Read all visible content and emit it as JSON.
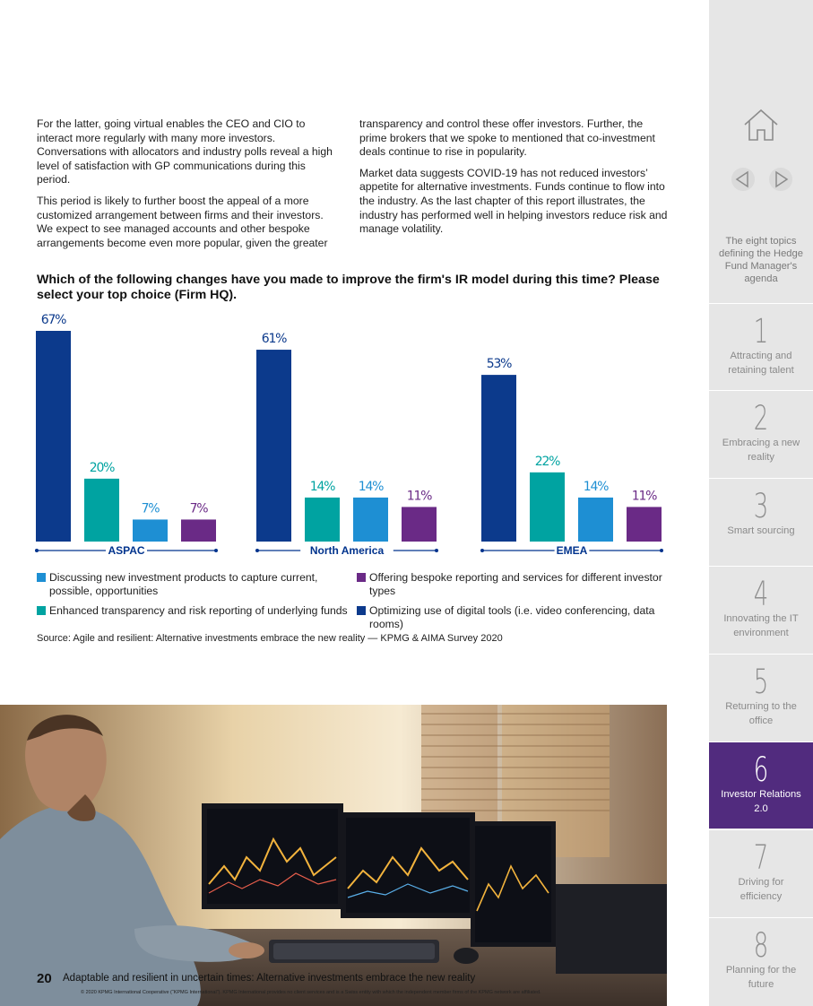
{
  "body": {
    "left_paragraphs": [
      "For the latter, going virtual enables the CEO and CIO to interact more regularly with many more investors. Conversations with allocators and industry polls reveal a high level of satisfaction with GP communications during this period.",
      "This period is likely to further boost the appeal of a more customized arrangement between firms and their investors. We expect to see managed accounts and other bespoke arrangements become even more popular, given the greater"
    ],
    "right_paragraphs": [
      "transparency and control these offer investors. Further, the prime brokers that we spoke to mentioned that co-investment deals continue to rise in popularity.",
      "Market data suggests COVID-19 has not reduced investors’ appetite for alternative investments. Funds continue to flow into the industry. As the last chapter of this report illustrates, the industry has performed well in helping investors reduce risk and manage volatility."
    ]
  },
  "chart_data": {
    "type": "bar",
    "title": "Which of the following changes have you made to improve the firm's IR model during this time? Please select your top choice (Firm HQ).",
    "categories": [
      "ASPAC",
      "North America",
      "EMEA"
    ],
    "value_suffix": "%",
    "series": [
      {
        "name": "Optimizing use of digital tools (i.e. video conferencing, data rooms)",
        "color": "#0c3a8c",
        "values": [
          67,
          61,
          53
        ]
      },
      {
        "name": "Enhanced transparency and risk reporting of underlying funds",
        "color": "#00a3a1",
        "values": [
          20,
          14,
          22
        ]
      },
      {
        "name": "Discussing new investment products to capture current, possible, opportunities",
        "color": "#1e8fd3",
        "values": [
          7,
          14,
          14
        ]
      },
      {
        "name": "Offering bespoke reporting and services for different investor types",
        "color": "#6a2a86",
        "values": [
          7,
          11,
          11
        ]
      }
    ],
    "ylim": [
      0,
      67
    ],
    "legend": [
      {
        "label": "Discussing new investment products to capture current, possible, opportunities",
        "color": "#1e8fd3"
      },
      {
        "label": "Offering bespoke reporting and services for different investor types",
        "color": "#6a2a86"
      },
      {
        "label": "Enhanced transparency and risk reporting of underlying funds",
        "color": "#00a3a1"
      },
      {
        "label": "Optimizing use of digital tools (i.e. video conferencing, data rooms)",
        "color": "#0c3a8c"
      }
    ],
    "legend_placement": "bottom",
    "source": "Source: Agile and resilient: Alternative investments embrace the new reality — KPMG & AIMA Survey 2020"
  },
  "footer": {
    "page_number": "20",
    "title": "Adaptable and resilient in uncertain times: Alternative investments embrace the new reality",
    "copyright": "© 2020 KPMG International Cooperative (“KPMG International”). KPMG International provides no client services and is a Swiss entity with which the independent member firms of the KPMG network are affiliated."
  },
  "sidebar": {
    "home_icon": "home-icon",
    "prev_icon": "triangle-left-icon",
    "next_icon": "triangle-right-icon",
    "topics_label": "The eight topics defining the Hedge Fund Manager's agenda",
    "items": [
      {
        "num": "1",
        "label": "Attracting and retaining talent",
        "active": false
      },
      {
        "num": "2",
        "label": "Embracing a new reality",
        "active": false
      },
      {
        "num": "3",
        "label": "Smart sourcing",
        "active": false
      },
      {
        "num": "4",
        "label": "Innovating the IT environment",
        "active": false
      },
      {
        "num": "5",
        "label": "Returning to the office",
        "active": false
      },
      {
        "num": "6",
        "label": "Investor Relations 2.0",
        "active": true
      },
      {
        "num": "7",
        "label": "Driving for efficiency",
        "active": false
      },
      {
        "num": "8",
        "label": "Planning for the future",
        "active": false
      }
    ],
    "active_color": "#512b7e"
  }
}
